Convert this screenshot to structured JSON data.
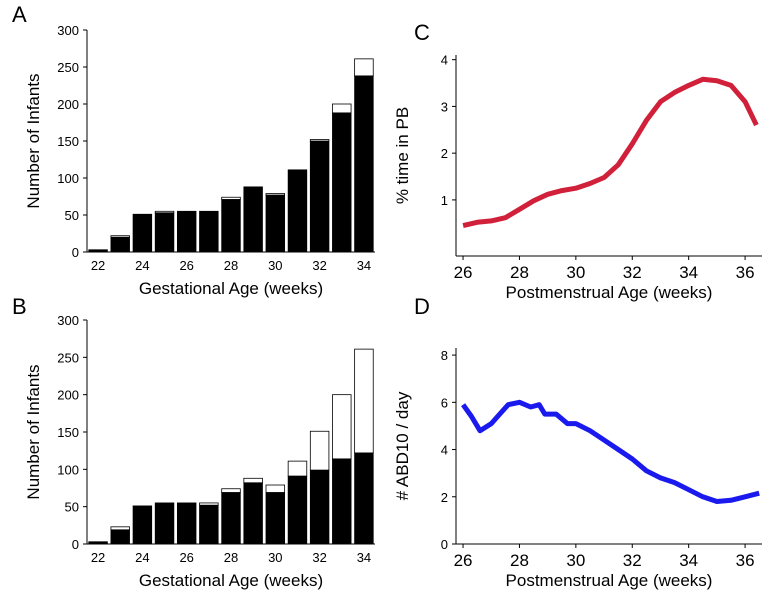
{
  "chart_data": [
    {
      "type": "bar",
      "label": "A",
      "xlabel": "Gestational Age (weeks)",
      "ylabel": "Number of Infants",
      "categories": [
        22,
        null,
        24,
        null,
        26,
        null,
        28,
        null,
        30,
        null,
        32,
        null,
        34
      ],
      "series": [
        {
          "color": "#000000",
          "values": [
            3,
            20,
            51,
            53,
            55,
            55,
            71,
            88,
            77,
            111,
            150,
            188,
            238
          ]
        },
        {
          "color": "#ffffff",
          "values": [
            0,
            2,
            0,
            2,
            0,
            0,
            3,
            0,
            2,
            0,
            2,
            12,
            23
          ]
        }
      ],
      "ylim": [
        0,
        300
      ],
      "yticks": [
        0,
        50,
        100,
        150,
        200,
        250,
        300
      ]
    },
    {
      "type": "bar",
      "label": "B",
      "xlabel": "Gestational Age (weeks)",
      "ylabel": "Number of Infants",
      "categories": [
        22,
        null,
        24,
        null,
        26,
        null,
        28,
        null,
        30,
        null,
        32,
        null,
        34
      ],
      "series": [
        {
          "color": "#000000",
          "values": [
            3,
            19,
            51,
            55,
            55,
            52,
            69,
            82,
            69,
            91,
            99,
            114,
            122
          ]
        },
        {
          "color": "#ffffff",
          "values": [
            0,
            4,
            0,
            0,
            0,
            3,
            5,
            6,
            10,
            20,
            52,
            86,
            139
          ]
        }
      ],
      "ylim": [
        0,
        300
      ],
      "yticks": [
        0,
        50,
        100,
        150,
        200,
        250,
        300
      ]
    },
    {
      "type": "line",
      "label": "C",
      "xlabel": "Postmenstrual Age (weeks)",
      "ylabel": "% time in PB",
      "x": [
        26,
        26.5,
        27,
        27.5,
        28,
        28.5,
        29,
        29.5,
        30,
        30.5,
        31,
        31.5,
        32,
        32.5,
        33,
        33.5,
        34,
        34.5,
        35,
        35.5,
        36,
        36.4
      ],
      "values": [
        0.45,
        0.52,
        0.55,
        0.62,
        0.8,
        0.98,
        1.12,
        1.2,
        1.25,
        1.35,
        1.48,
        1.75,
        2.2,
        2.7,
        3.1,
        3.3,
        3.45,
        3.58,
        3.55,
        3.45,
        3.1,
        2.6
      ],
      "color": "#d0203a",
      "xlim": [
        25.75,
        36.6
      ],
      "xticks": [
        26,
        28,
        30,
        32,
        34,
        36
      ],
      "ylim": [
        -0.2,
        4.1
      ],
      "yticks": [
        1,
        2,
        3,
        4
      ]
    },
    {
      "type": "line",
      "label": "D",
      "xlabel": "Postmenstrual Age (weeks)",
      "ylabel": "# ABD10 / day",
      "x": [
        26,
        26.3,
        26.6,
        27,
        27.3,
        27.6,
        28,
        28.4,
        28.7,
        28.9,
        29.3,
        29.7,
        30,
        30.5,
        31,
        31.5,
        32,
        32.5,
        33,
        33.5,
        34,
        34.5,
        35,
        35.5,
        36,
        36.5
      ],
      "values": [
        5.9,
        5.4,
        4.8,
        5.1,
        5.5,
        5.9,
        6.0,
        5.8,
        5.9,
        5.5,
        5.5,
        5.1,
        5.1,
        4.8,
        4.4,
        4.0,
        3.6,
        3.1,
        2.8,
        2.6,
        2.3,
        2.0,
        1.8,
        1.85,
        2.0,
        2.15
      ],
      "color": "#1a1aee",
      "xlim": [
        25.75,
        36.6
      ],
      "xticks": [
        26,
        28,
        30,
        32,
        34,
        36
      ],
      "ylim": [
        0,
        8.3
      ],
      "yticks": [
        0,
        2,
        4,
        6,
        8
      ]
    }
  ]
}
